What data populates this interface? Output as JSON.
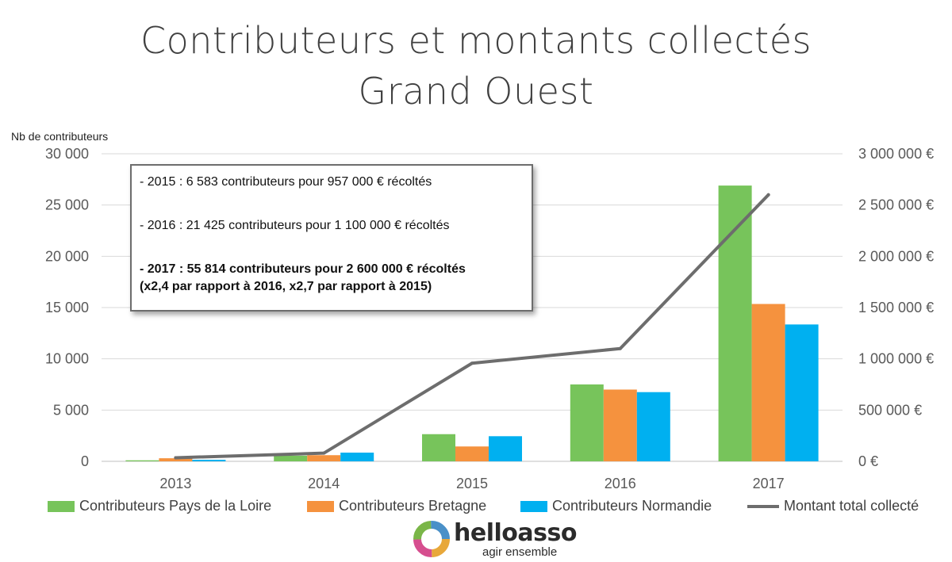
{
  "title": {
    "line1": "Contributeurs et montants collectés",
    "line2": "Grand Ouest"
  },
  "y_left_label": "Nb de contributeurs",
  "annotation": {
    "line1": "- 2015 : 6 583 contributeurs pour 957 000 € récoltés",
    "line2": "- 2016 : 21 425 contributeurs pour 1 100 000 € récoltés",
    "line3": "- 2017 : 55 814 contributeurs pour 2 600 000 € récoltés",
    "line4": "(x2,4 par rapport à 2016, x2,7 par rapport à 2015)"
  },
  "logo": {
    "word": "helloasso",
    "tagline": "agir ensemble"
  },
  "colors": {
    "pays_de_la_loire": "#77c45b",
    "bretagne": "#f5923e",
    "normandie": "#00b0f0",
    "montant": "#6d6d6d",
    "grid": "#d9d9d9",
    "axis_text": "#595959"
  },
  "chart_data": {
    "type": "bar",
    "categories": [
      "2013",
      "2014",
      "2015",
      "2016",
      "2017"
    ],
    "series": [
      {
        "name": "Contributeurs Pays de la Loire",
        "type": "bar",
        "axis": "left",
        "values": [
          100,
          550,
          2650,
          7500,
          26900
        ]
      },
      {
        "name": "Contributeurs Bretagne",
        "type": "bar",
        "axis": "left",
        "values": [
          300,
          600,
          1450,
          7000,
          15350
        ]
      },
      {
        "name": "Contributeurs Normandie",
        "type": "bar",
        "axis": "left",
        "values": [
          150,
          850,
          2450,
          6750,
          13350
        ]
      },
      {
        "name": "Montant total collecté",
        "type": "line",
        "axis": "right",
        "values": [
          35000,
          80000,
          957000,
          1100000,
          2600000
        ]
      }
    ],
    "y_left": {
      "label": "Nb de contributeurs",
      "range": [
        0,
        30000
      ],
      "ticks": [
        "0",
        "5 000",
        "10 000",
        "15 000",
        "20 000",
        "25 000",
        "30 000"
      ]
    },
    "y_right": {
      "range": [
        0,
        3000000
      ],
      "ticks": [
        "0 €",
        "500 000 €",
        "1 000 000 €",
        "1 500 000 €",
        "2 000 000 €",
        "2 500 000 €",
        "3 000 000 €"
      ]
    },
    "grid": true,
    "legend_position": "bottom"
  }
}
